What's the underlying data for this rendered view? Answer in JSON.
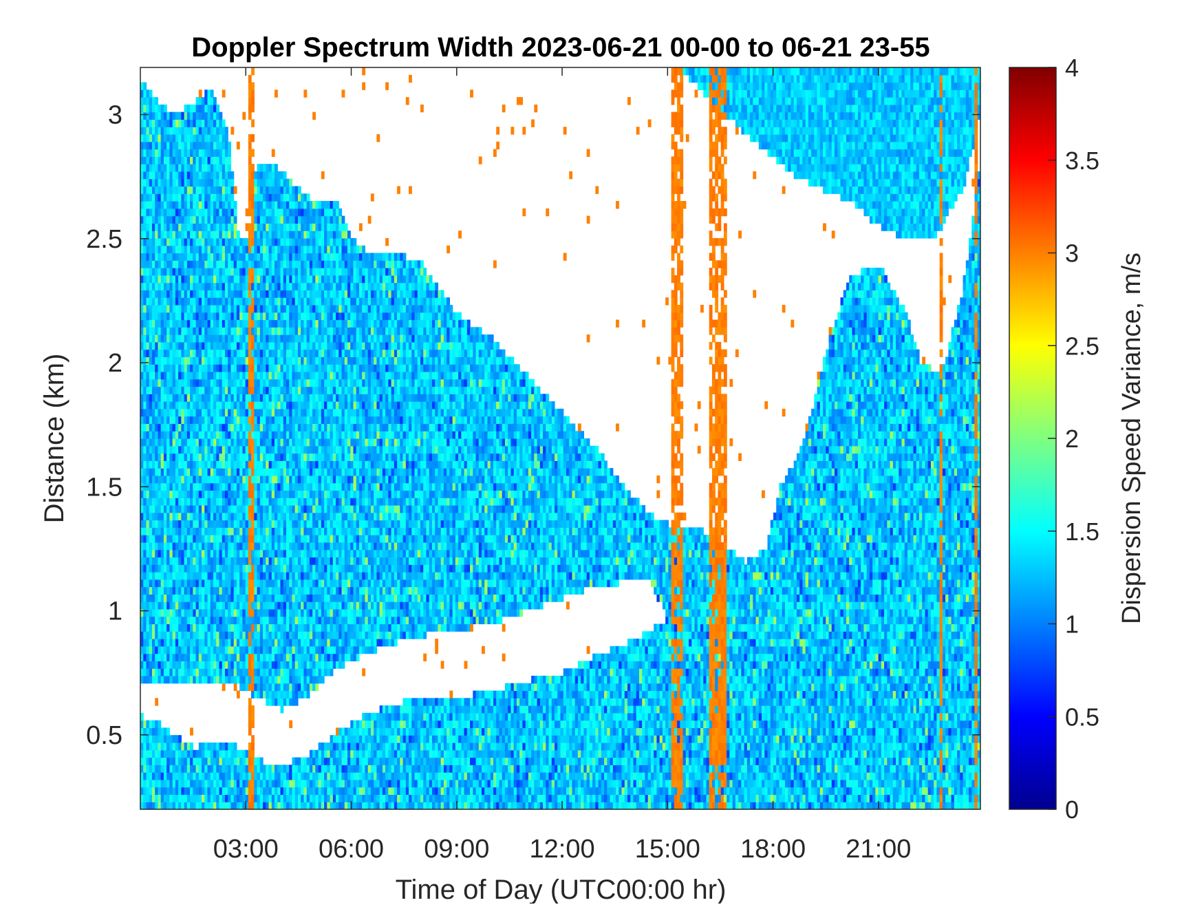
{
  "chart_data": {
    "type": "heatmap",
    "title": "Doppler Spectrum Width 2023-06-21 00-00 to 06-21 23-55",
    "xlabel": "Time of Day (UTC00:00 hr)",
    "ylabel": "Distance (km)",
    "colorbar_label": "Dispersion Speed Variance, m/s",
    "x_range_hours": [
      0,
      23.9
    ],
    "y_range_km": [
      0.2,
      3.19
    ],
    "x_ticks": [
      {
        "value": 3,
        "label": "03:00"
      },
      {
        "value": 6,
        "label": "06:00"
      },
      {
        "value": 9,
        "label": "09:00"
      },
      {
        "value": 12,
        "label": "12:00"
      },
      {
        "value": 15,
        "label": "15:00"
      },
      {
        "value": 18,
        "label": "18:00"
      },
      {
        "value": 21,
        "label": "21:00"
      }
    ],
    "y_ticks": [
      {
        "value": 0.5,
        "label": "0.5"
      },
      {
        "value": 1,
        "label": "1"
      },
      {
        "value": 1.5,
        "label": "1.5"
      },
      {
        "value": 2,
        "label": "2"
      },
      {
        "value": 2.5,
        "label": "2.5"
      },
      {
        "value": 3,
        "label": "3"
      }
    ],
    "colorbar": {
      "colormap": "jet",
      "range": [
        0,
        4
      ],
      "ticks": [
        {
          "value": 0,
          "label": "0"
        },
        {
          "value": 0.5,
          "label": "0.5"
        },
        {
          "value": 1,
          "label": "1"
        },
        {
          "value": 1.5,
          "label": "1.5"
        },
        {
          "value": 2,
          "label": "2"
        },
        {
          "value": 2.5,
          "label": "2.5"
        },
        {
          "value": 3,
          "label": "3"
        },
        {
          "value": 3.5,
          "label": "3.5"
        },
        {
          "value": 4,
          "label": "4"
        }
      ]
    },
    "typical_value": 1.3,
    "no_data_color": "#ffffff",
    "data_top_km": [
      [
        0,
        3.15
      ],
      [
        0.5,
        3.05
      ],
      [
        1,
        3.0
      ],
      [
        1.5,
        3.05
      ],
      [
        2,
        3.1
      ],
      [
        2.5,
        2.95
      ],
      [
        2.8,
        2.5
      ],
      [
        3.05,
        2.5
      ],
      [
        3.3,
        2.8
      ],
      [
        3.8,
        2.8
      ],
      [
        4.2,
        2.75
      ],
      [
        4.5,
        2.7
      ],
      [
        5.0,
        2.65
      ],
      [
        5.6,
        2.65
      ],
      [
        6.0,
        2.5
      ],
      [
        6.5,
        2.45
      ],
      [
        7.2,
        2.45
      ],
      [
        8.0,
        2.4
      ],
      [
        9.0,
        2.2
      ],
      [
        10.0,
        2.1
      ],
      [
        11.0,
        1.95
      ],
      [
        12.0,
        1.8
      ],
      [
        13.0,
        1.65
      ],
      [
        13.8,
        1.5
      ],
      [
        14.4,
        1.4
      ],
      [
        15.0,
        1.35
      ],
      [
        15.6,
        1.35
      ],
      [
        16.3,
        1.3
      ],
      [
        17.2,
        1.2
      ],
      [
        17.8,
        1.25
      ],
      [
        18.2,
        1.5
      ],
      [
        18.6,
        1.6
      ],
      [
        19.0,
        1.75
      ],
      [
        19.6,
        2.1
      ],
      [
        20.2,
        2.35
      ],
      [
        21.0,
        2.4
      ],
      [
        21.8,
        2.2
      ],
      [
        22.2,
        2.0
      ],
      [
        22.8,
        1.95
      ],
      [
        23.4,
        2.3
      ],
      [
        23.9,
        2.8
      ]
    ],
    "data_gap_km": [
      [
        0,
        0.58,
        0.72
      ],
      [
        0.5,
        0.55,
        0.72
      ],
      [
        1.0,
        0.5,
        0.7
      ],
      [
        1.5,
        0.45,
        0.7
      ],
      [
        2.5,
        0.48,
        0.72
      ],
      [
        3.3,
        0.4,
        0.65
      ],
      [
        4.0,
        0.38,
        0.6
      ],
      [
        4.8,
        0.42,
        0.66
      ],
      [
        5.5,
        0.5,
        0.76
      ],
      [
        6.0,
        0.55,
        0.8
      ],
      [
        7.0,
        0.62,
        0.86
      ],
      [
        8.0,
        0.65,
        0.9
      ],
      [
        9.0,
        0.65,
        0.92
      ],
      [
        10.0,
        0.68,
        0.95
      ],
      [
        11.0,
        0.72,
        1.0
      ],
      [
        12.0,
        0.75,
        1.05
      ],
      [
        13.0,
        0.82,
        1.1
      ],
      [
        14.0,
        0.88,
        1.12
      ],
      [
        14.5,
        0.92,
        1.12
      ],
      [
        15.0,
        0.97,
        0.97
      ]
    ],
    "upper_layer": [
      [
        14.8,
        3.19
      ],
      [
        15.6,
        3.15
      ],
      [
        16.3,
        3.05
      ],
      [
        17.0,
        2.95
      ],
      [
        17.8,
        2.85
      ],
      [
        18.6,
        2.75
      ],
      [
        19.4,
        2.7
      ],
      [
        20.2,
        2.65
      ],
      [
        21.0,
        2.55
      ],
      [
        21.8,
        2.5
      ],
      [
        22.6,
        2.5
      ],
      [
        23.4,
        2.7
      ],
      [
        23.9,
        3.0
      ]
    ],
    "orange_columns_hours": [
      [
        3.1,
        3.2
      ],
      [
        15.1,
        15.45
      ],
      [
        16.2,
        16.7
      ],
      [
        22.7,
        22.8
      ],
      [
        23.75,
        23.85
      ]
    ],
    "orange_value": 3.0
  }
}
